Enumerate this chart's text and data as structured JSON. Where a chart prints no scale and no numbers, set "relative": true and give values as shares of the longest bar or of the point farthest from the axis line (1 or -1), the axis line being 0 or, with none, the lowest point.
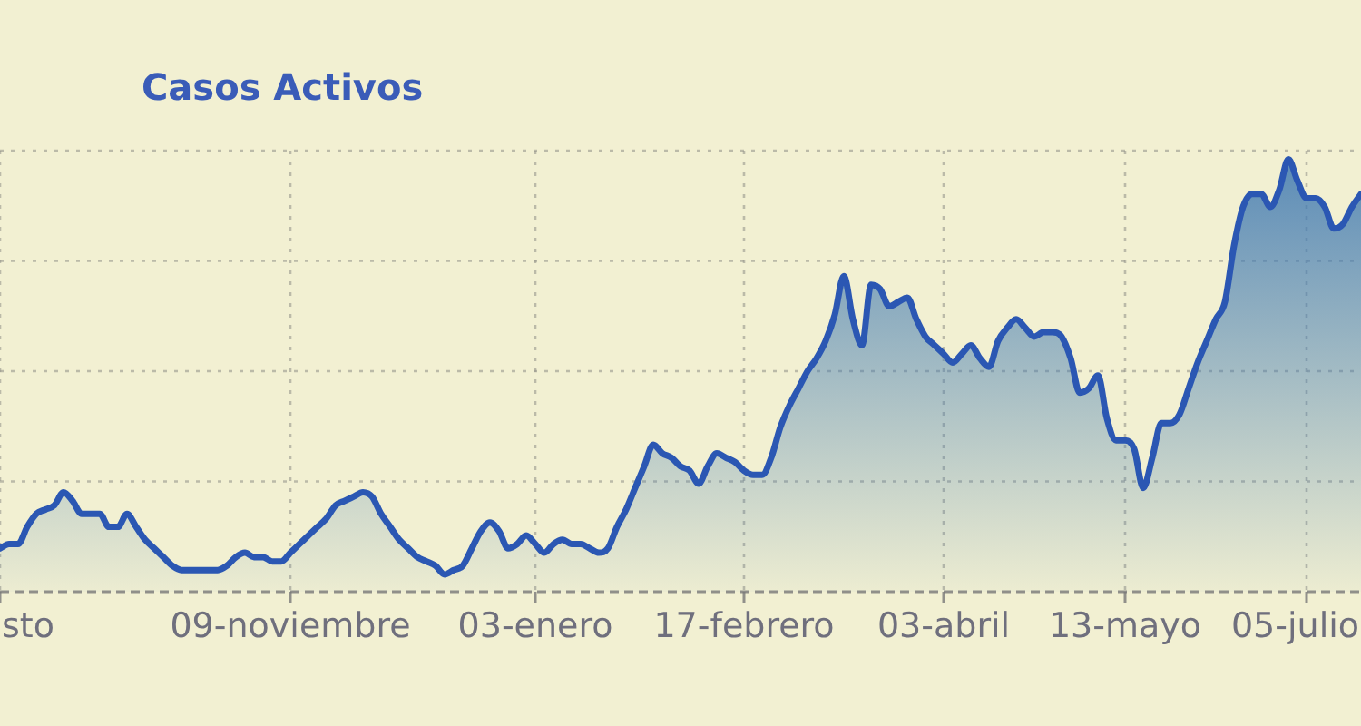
{
  "chart_data": {
    "type": "area",
    "title": "Casos Activos",
    "categories": [
      "sto",
      null,
      null,
      null,
      null,
      null,
      null,
      null,
      null,
      null,
      null,
      null,
      null,
      null,
      null,
      null,
      null,
      null,
      null,
      null,
      null,
      null,
      null,
      null,
      null,
      null,
      null,
      null,
      null,
      null,
      null,
      null,
      "09-noviembre",
      null,
      null,
      null,
      null,
      null,
      null,
      null,
      null,
      null,
      null,
      null,
      null,
      null,
      null,
      null,
      null,
      null,
      null,
      null,
      null,
      null,
      null,
      null,
      null,
      null,
      null,
      "03-enero",
      null,
      null,
      null,
      null,
      null,
      null,
      null,
      null,
      null,
      null,
      null,
      null,
      null,
      null,
      null,
      null,
      null,
      null,
      null,
      null,
      null,
      null,
      "17-febrero",
      null,
      null,
      null,
      null,
      null,
      null,
      null,
      null,
      null,
      null,
      null,
      null,
      null,
      null,
      null,
      null,
      null,
      null,
      null,
      null,
      null,
      "03-abril",
      null,
      null,
      null,
      null,
      null,
      null,
      null,
      null,
      null,
      null,
      null,
      null,
      null,
      null,
      null,
      null,
      null,
      null,
      null,
      "13-mayo",
      null,
      null,
      null,
      null,
      null,
      null,
      null,
      null,
      null,
      null,
      null,
      null,
      null,
      null,
      null,
      null,
      null,
      null,
      null,
      "05-julio",
      null,
      null,
      null,
      null,
      null,
      null
    ],
    "values": [
      0.1,
      0.11,
      0.11,
      0.15,
      0.18,
      0.19,
      0.2,
      0.23,
      0.21,
      0.18,
      0.18,
      0.18,
      0.15,
      0.15,
      0.18,
      0.15,
      0.12,
      0.1,
      0.08,
      0.06,
      0.05,
      0.05,
      0.05,
      0.05,
      0.05,
      0.06,
      0.08,
      0.09,
      0.08,
      0.08,
      0.07,
      0.07,
      0.09,
      0.11,
      0.13,
      0.15,
      0.17,
      0.2,
      0.21,
      0.22,
      0.23,
      0.22,
      0.18,
      0.15,
      0.12,
      0.1,
      0.08,
      0.07,
      0.06,
      0.04,
      0.05,
      0.06,
      0.1,
      0.14,
      0.16,
      0.14,
      0.1,
      0.11,
      0.13,
      0.11,
      0.09,
      0.11,
      0.12,
      0.11,
      0.11,
      0.1,
      0.09,
      0.1,
      0.15,
      0.19,
      0.24,
      0.29,
      0.34,
      0.32,
      0.31,
      0.29,
      0.28,
      0.25,
      0.29,
      0.32,
      0.31,
      0.3,
      0.28,
      0.27,
      0.27,
      0.31,
      0.38,
      0.43,
      0.47,
      0.51,
      0.54,
      0.58,
      0.64,
      0.73,
      0.63,
      0.57,
      0.71,
      0.7,
      0.66,
      0.67,
      0.68,
      0.63,
      0.59,
      0.57,
      0.55,
      0.53,
      0.55,
      0.57,
      0.54,
      0.52,
      0.58,
      0.61,
      0.63,
      0.61,
      0.59,
      0.6,
      0.6,
      0.59,
      0.54,
      0.46,
      0.47,
      0.5,
      0.4,
      0.35,
      0.35,
      0.33,
      0.24,
      0.31,
      0.39,
      0.39,
      0.41,
      0.47,
      0.53,
      0.58,
      0.63,
      0.67,
      0.8,
      0.89,
      0.92,
      0.92,
      0.89,
      0.93,
      1,
      0.95,
      0.91,
      0.91,
      0.89,
      0.84,
      0.85,
      0.89,
      0.92
    ],
    "color": "#2b57b3",
    "relative": true,
    "grid": true
  }
}
